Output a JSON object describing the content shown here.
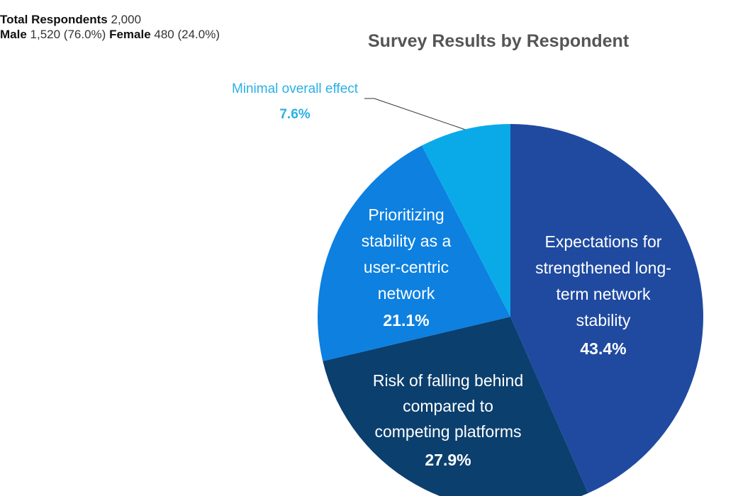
{
  "stats": {
    "total_label": "Total Respondents",
    "total_value": "2,000",
    "male_label": "Male",
    "male_value": "1,520 (76.0%)",
    "female_label": "Female",
    "female_value": "480 (24.0%)"
  },
  "chart_data": {
    "type": "pie",
    "title": "Survey Results by Respondent",
    "slices": [
      {
        "label": "Expectations for strengthened long-term network stability",
        "label_lines": [
          "Expectations for",
          "strengthened long-",
          "term network",
          "stability"
        ],
        "value": 43.4,
        "value_label": "43.4%",
        "color": "#1f4aa0"
      },
      {
        "label": "Risk of falling behind compared to competing platforms",
        "label_lines": [
          "Risk of falling behind",
          "compared to",
          "competing platforms"
        ],
        "value": 27.9,
        "value_label": "27.9%",
        "color": "#0b3f6e"
      },
      {
        "label": "Prioritizing stability as a user-centric network",
        "label_lines": [
          "Prioritizing",
          "stability as a",
          "user-centric",
          "network"
        ],
        "value": 21.1,
        "value_label": "21.1%",
        "color": "#0d80e0"
      },
      {
        "label": "Minimal overall effect",
        "label_lines": [
          "Minimal overall effect"
        ],
        "value": 7.6,
        "value_label": "7.6%",
        "color": "#0aaae8",
        "outside": true,
        "label_color": "#2ab0e6"
      }
    ]
  }
}
